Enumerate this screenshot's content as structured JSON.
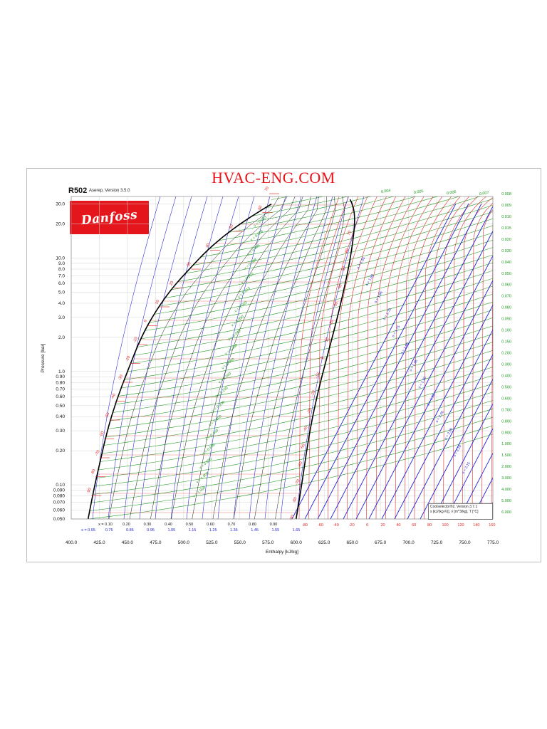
{
  "page": {
    "site_title": "HVAC-ENG.COM",
    "chart_title": "R502",
    "chart_subtitle": "Aserep, Version 3.5.0",
    "logo_text": "Danfoss",
    "info_line1": "Coolselector®2, Version 3.7.1",
    "info_line2": "s [kJ/(kg·K)], v [m^3/kg], T [°C]"
  },
  "colors": {
    "isotherm": "#e11d1d",
    "isochore": "#1f9b1f",
    "isentrope": "#2323d6",
    "saturation": "#000000",
    "site_title": "#e8151b"
  },
  "chart_data": {
    "type": "line",
    "chart_kind": "pressure-enthalpy diagram",
    "xlabel": "Enthalpy [kJ/kg]",
    "ylabel": "Pressure [bar]",
    "xlim": [
      400,
      775
    ],
    "ylim": [
      0.05,
      35
    ],
    "y_scale": "log",
    "grid": true,
    "x_ticks": [
      "400.0",
      "425.0",
      "450.0",
      "475.0",
      "500.0",
      "525.0",
      "550.0",
      "575.0",
      "600.0",
      "625.0",
      "650.0",
      "675.0",
      "700.0",
      "725.0",
      "750.0",
      "775.0"
    ],
    "y_ticks": [
      {
        "v": 30,
        "t": "30.0"
      },
      {
        "v": 20,
        "t": "20.0"
      },
      {
        "v": 10,
        "t": "10.0"
      },
      {
        "v": 9,
        "t": "9.0"
      },
      {
        "v": 8,
        "t": "8.0"
      },
      {
        "v": 7,
        "t": "7.0"
      },
      {
        "v": 6,
        "t": "6.0"
      },
      {
        "v": 5,
        "t": "5.0"
      },
      {
        "v": 4,
        "t": "4.0"
      },
      {
        "v": 3,
        "t": "3.0"
      },
      {
        "v": 2,
        "t": "2.0"
      },
      {
        "v": 1,
        "t": "1.0"
      },
      {
        "v": 0.9,
        "t": "0.90"
      },
      {
        "v": 0.8,
        "t": "0.80"
      },
      {
        "v": 0.7,
        "t": "0.70"
      },
      {
        "v": 0.6,
        "t": "0.60"
      },
      {
        "v": 0.5,
        "t": "0.50"
      },
      {
        "v": 0.4,
        "t": "0.40"
      },
      {
        "v": 0.3,
        "t": "0.30"
      },
      {
        "v": 0.2,
        "t": "0.20"
      },
      {
        "v": 0.1,
        "t": "0.10"
      },
      {
        "v": 0.09,
        "t": "0.090"
      },
      {
        "v": 0.08,
        "t": "0.080"
      },
      {
        "v": 0.07,
        "t": "0.070"
      },
      {
        "v": 0.06,
        "t": "0.060"
      },
      {
        "v": 0.05,
        "t": "0.050"
      }
    ],
    "saturated_liquid": [
      [
        415,
        0.05
      ],
      [
        420,
        0.09
      ],
      [
        425,
        0.15
      ],
      [
        432,
        0.3
      ],
      [
        440,
        0.55
      ],
      [
        450,
        1.0
      ],
      [
        462,
        2.0
      ],
      [
        475,
        3.4
      ],
      [
        490,
        5.5
      ],
      [
        505,
        8.0
      ],
      [
        520,
        11.5
      ],
      [
        535,
        15.5
      ],
      [
        550,
        20
      ],
      [
        565,
        25
      ],
      [
        578,
        30
      ]
    ],
    "saturated_vapor": [
      [
        600,
        0.05
      ],
      [
        605,
        0.1
      ],
      [
        612,
        0.3
      ],
      [
        620,
        0.7
      ],
      [
        628,
        1.4
      ],
      [
        636,
        2.8
      ],
      [
        642,
        5.0
      ],
      [
        647,
        8.5
      ],
      [
        650,
        13
      ],
      [
        652,
        19
      ],
      [
        652,
        25
      ],
      [
        650,
        30
      ],
      [
        648,
        33
      ]
    ],
    "quality_labels": [
      "x = 0.10",
      "0.20",
      "0.30",
      "0.40",
      "0.50",
      "0.60",
      "0.70",
      "0.80",
      "0.90"
    ],
    "entropy_labels": [
      "s = 0.65",
      "0.75",
      "0.85",
      "0.95",
      "1.05",
      "1.15",
      "1.25",
      "1.35",
      "1.45",
      "1.55",
      "1.65"
    ],
    "temperature_labels_bottom": [
      "-80",
      "-60",
      "-40",
      "-20",
      "0",
      "20",
      "40",
      "60",
      "80",
      "100",
      "120",
      "140",
      "160"
    ],
    "saturation_temperature_labels": [
      "-90",
      "-80",
      "-70",
      "-60",
      "-50",
      "-40",
      "-30",
      "-20",
      "-10",
      "0",
      "10",
      "20",
      "30",
      "40",
      "50",
      "60",
      "70"
    ],
    "vapor_temperature_labels": [
      "-90",
      "-80",
      "-70",
      "-60",
      "-50",
      "-40",
      "-30",
      "-20",
      "-10",
      "0",
      "10",
      "20",
      "30",
      "40",
      "50",
      "60",
      "70"
    ],
    "isentrope_labels": [
      "s = 1.55",
      "s = 1.60",
      "s = 1.65",
      "s = 1.70",
      "s = 1.75",
      "s = 1.80",
      "s = 1.85",
      "s = 1.90",
      "s = 1.95",
      "s = 2.00",
      "s = 2.05",
      "s = 2.10",
      "s = 2.15"
    ],
    "specific_volume_labels_right": [
      "0.008",
      "0.009",
      "0.010",
      "0.015",
      "0.020",
      "0.030",
      "0.040",
      "0.050",
      "0.060",
      "0.070",
      "0.080",
      "0.090",
      "0.100",
      "0.150",
      "0.200",
      "0.300",
      "0.400",
      "0.500",
      "0.600",
      "0.700",
      "0.800",
      "0.900",
      "1.000",
      "1.500",
      "2.000",
      "3.000",
      "4.000",
      "5.000",
      "6.000"
    ],
    "specific_volume_labels_top": [
      "0.004",
      "0.005",
      "0.006",
      "0.007"
    ],
    "specific_volume_labels_inner": [
      "v = 0.003",
      "v = 0.004",
      "v = 0.006",
      "v = 0.008",
      "v = 0.010",
      "v = 0.015",
      "v = 0.020",
      "v = 0.030",
      "v = 0.040",
      "v = 0.060",
      "v = 0.080",
      "v = 0.100",
      "v = 0.150",
      "v = 0.200",
      "v = 0.300",
      "v = 0.400",
      "v = 0.600",
      "v = 0.800",
      "v = 1.000",
      "v = 1.500"
    ]
  }
}
